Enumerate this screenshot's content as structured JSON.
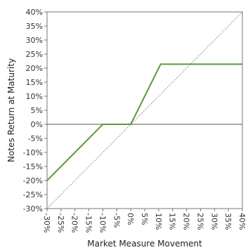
{
  "chart_data": {
    "type": "line",
    "xlabel": "Market Measure Movement",
    "ylabel": "Notes Return at Maturity",
    "xlim": [
      -30,
      40
    ],
    "ylim": [
      -30,
      40
    ],
    "x_ticks": [
      "-30%",
      "-25%",
      "-20%",
      "-15%",
      "-10%",
      "-5%",
      "0%",
      "5%",
      "10%",
      "15%",
      "20%",
      "25%",
      "30%",
      "35%",
      "40%"
    ],
    "y_ticks": [
      "40%",
      "35%",
      "30%",
      "25%",
      "20%",
      "15%",
      "10%",
      "5%",
      "0%",
      "-5%",
      "-10%",
      "-15%",
      "-20%",
      "-25%",
      "-30%"
    ],
    "grid": false,
    "series": [
      {
        "style": "solid",
        "color": "#5b9a3b",
        "x": [
          -30,
          -10,
          0,
          10.7,
          40
        ],
        "y": [
          -20,
          0,
          0,
          21.4,
          21.4
        ]
      },
      {
        "style": "dotted",
        "color": "#555555",
        "x": [
          -30,
          40
        ],
        "y": [
          -30,
          40
        ]
      }
    ],
    "reference_lines": [
      {
        "axis": "y",
        "value": 0,
        "color": "#555555"
      }
    ]
  }
}
